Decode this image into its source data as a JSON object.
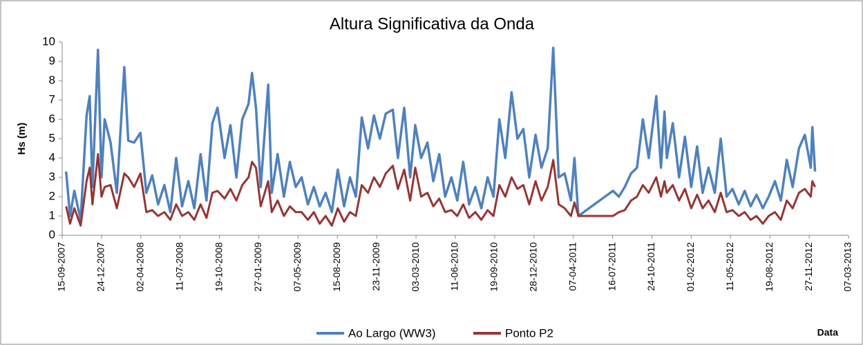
{
  "chart_data": {
    "type": "line",
    "title": "Altura Significativa da Onda",
    "ylabel": "Hs (m)",
    "xlabel": "Data",
    "x": [
      "25-09-2007",
      "05-10-2007",
      "16-10-2007",
      "01-11-2007",
      "16-11-2007",
      "24-11-2007",
      "01-12-2007",
      "15-12-2007",
      "24-12-2007",
      "01-01-2008",
      "16-01-2008",
      "01-02-2008",
      "20-02-2008",
      "01-03-2008",
      "16-03-2008",
      "01-04-2008",
      "16-04-2008",
      "01-05-2008",
      "16-05-2008",
      "01-06-2008",
      "16-06-2008",
      "01-07-2008",
      "16-07-2008",
      "01-08-2008",
      "16-08-2008",
      "01-09-2008",
      "16-09-2008",
      "01-10-2008",
      "14-10-2008",
      "01-11-2008",
      "16-11-2008",
      "01-12-2008",
      "16-12-2008",
      "01-01-2009",
      "10-01-2009",
      "20-01-2009",
      "01-02-2009",
      "20-02-2009",
      "01-03-2009",
      "16-03-2009",
      "01-04-2009",
      "16-04-2009",
      "01-05-2009",
      "16-05-2009",
      "01-06-2009",
      "16-06-2009",
      "01-07-2009",
      "16-07-2009",
      "01-08-2009",
      "16-08-2009",
      "01-09-2009",
      "16-09-2009",
      "01-10-2009",
      "16-10-2009",
      "01-11-2009",
      "16-11-2009",
      "01-12-2009",
      "16-12-2009",
      "03-01-2010",
      "16-01-2010",
      "01-02-2010",
      "16-02-2010",
      "01-03-2010",
      "16-03-2010",
      "01-04-2010",
      "16-04-2010",
      "01-05-2010",
      "16-05-2010",
      "01-06-2010",
      "16-06-2010",
      "01-07-2010",
      "16-07-2010",
      "01-08-2010",
      "16-08-2010",
      "01-09-2010",
      "16-09-2010",
      "01-10-2010",
      "16-10-2010",
      "01-11-2010",
      "16-11-2010",
      "01-12-2010",
      "16-12-2010",
      "01-01-2011",
      "16-01-2011",
      "01-02-2011",
      "15-02-2011",
      "01-03-2011",
      "16-03-2011",
      "01-04-2011",
      "10-04-2011",
      "20-04-2011",
      "17-07-2011",
      "01-08-2011",
      "16-08-2011",
      "01-09-2011",
      "16-09-2011",
      "01-10-2011",
      "16-10-2011",
      "04-11-2011",
      "16-11-2011",
      "25-11-2011",
      "01-12-2011",
      "16-12-2011",
      "01-01-2012",
      "16-01-2012",
      "01-02-2012",
      "16-02-2012",
      "01-03-2012",
      "16-03-2012",
      "01-04-2012",
      "16-04-2012",
      "01-05-2012",
      "16-05-2012",
      "01-06-2012",
      "16-06-2012",
      "01-07-2012",
      "16-07-2012",
      "01-08-2012",
      "16-08-2012",
      "01-09-2012",
      "16-09-2012",
      "01-10-2012",
      "16-10-2012",
      "01-11-2012",
      "16-11-2012",
      "01-12-2012",
      "05-12-2012",
      "12-12-2012"
    ],
    "series": [
      {
        "name": "Ao Largo (WW3)",
        "color": "#4f81bd",
        "values": [
          3.3,
          1.0,
          2.3,
          0.8,
          6.2,
          7.2,
          2.5,
          9.6,
          3.0,
          6.0,
          4.8,
          2.2,
          8.7,
          4.9,
          4.8,
          5.3,
          2.2,
          3.1,
          1.6,
          2.6,
          1.2,
          4.0,
          1.5,
          2.8,
          1.4,
          4.2,
          1.8,
          5.8,
          6.6,
          4.0,
          5.7,
          3.0,
          6.0,
          6.8,
          8.4,
          6.6,
          2.5,
          7.8,
          2.2,
          4.2,
          2.0,
          3.8,
          2.5,
          3.0,
          1.6,
          2.5,
          1.5,
          2.2,
          1.2,
          3.4,
          1.5,
          3.0,
          2.0,
          6.1,
          4.5,
          6.2,
          5.0,
          6.3,
          6.5,
          4.0,
          6.6,
          3.0,
          5.7,
          4.0,
          4.8,
          2.8,
          4.2,
          2.0,
          3.0,
          1.8,
          3.8,
          1.6,
          2.5,
          1.4,
          3.0,
          2.0,
          6.0,
          4.0,
          7.4,
          5.0,
          5.5,
          3.0,
          5.2,
          3.5,
          4.5,
          9.7,
          3.0,
          3.2,
          1.8,
          4.0,
          1.0,
          2.3,
          2.0,
          2.5,
          3.2,
          3.5,
          6.0,
          4.0,
          7.2,
          3.5,
          6.4,
          4.0,
          5.8,
          3.0,
          5.1,
          2.5,
          4.6,
          2.2,
          3.5,
          2.2,
          5.0,
          2.0,
          2.4,
          1.6,
          2.3,
          1.5,
          2.1,
          1.4,
          2.0,
          2.8,
          1.8,
          3.9,
          2.5,
          4.5,
          5.2,
          3.5,
          5.6,
          3.3
        ]
      },
      {
        "name": "Ponto P2",
        "color": "#943634",
        "values": [
          1.5,
          0.6,
          1.4,
          0.5,
          2.8,
          3.5,
          1.6,
          4.2,
          2.0,
          2.5,
          2.6,
          1.4,
          3.2,
          3.0,
          2.5,
          3.2,
          1.2,
          1.3,
          1.0,
          1.2,
          0.8,
          1.6,
          1.0,
          1.2,
          0.8,
          1.6,
          0.9,
          2.2,
          2.3,
          1.9,
          2.4,
          1.8,
          2.6,
          3.0,
          3.8,
          3.5,
          1.5,
          2.8,
          1.2,
          1.8,
          1.0,
          1.5,
          1.2,
          1.2,
          0.8,
          1.2,
          0.6,
          1.0,
          0.5,
          1.4,
          0.7,
          1.2,
          1.0,
          2.6,
          2.2,
          3.0,
          2.5,
          3.2,
          3.6,
          2.4,
          3.4,
          1.8,
          3.5,
          2.0,
          2.2,
          1.5,
          1.9,
          1.2,
          1.3,
          1.0,
          1.6,
          0.9,
          1.2,
          0.8,
          1.3,
          1.0,
          2.6,
          2.0,
          3.0,
          2.4,
          2.6,
          1.6,
          2.8,
          1.8,
          2.5,
          3.9,
          1.6,
          1.4,
          1.0,
          1.7,
          1.0,
          1.0,
          1.2,
          1.3,
          1.8,
          2.0,
          2.6,
          2.2,
          3.0,
          2.0,
          2.8,
          2.2,
          2.6,
          1.8,
          2.4,
          1.4,
          2.1,
          1.4,
          1.8,
          1.2,
          2.2,
          1.2,
          1.3,
          1.0,
          1.2,
          0.8,
          1.0,
          0.6,
          1.0,
          1.2,
          0.8,
          1.8,
          1.4,
          2.2,
          2.4,
          2.0,
          2.8,
          2.5
        ]
      }
    ],
    "xlim": [
      "15-09-2007",
      "07-03-2013"
    ],
    "xticks": [
      "15-09-2007",
      "24-12-2007",
      "02-04-2008",
      "11-07-2008",
      "19-10-2008",
      "27-01-2009",
      "07-05-2009",
      "15-08-2009",
      "23-11-2009",
      "03-03-2010",
      "11-06-2010",
      "19-09-2010",
      "28-12-2010",
      "07-04-2011",
      "16-07-2011",
      "24-10-2011",
      "01-02-2012",
      "11-05-2012",
      "19-08-2012",
      "27-11-2012",
      "07-03-2013"
    ],
    "ylim": [
      0,
      10
    ],
    "yticks": [
      0,
      1,
      2,
      3,
      4,
      5,
      6,
      7,
      8,
      9,
      10
    ],
    "grid": false,
    "legend": "bottom"
  }
}
